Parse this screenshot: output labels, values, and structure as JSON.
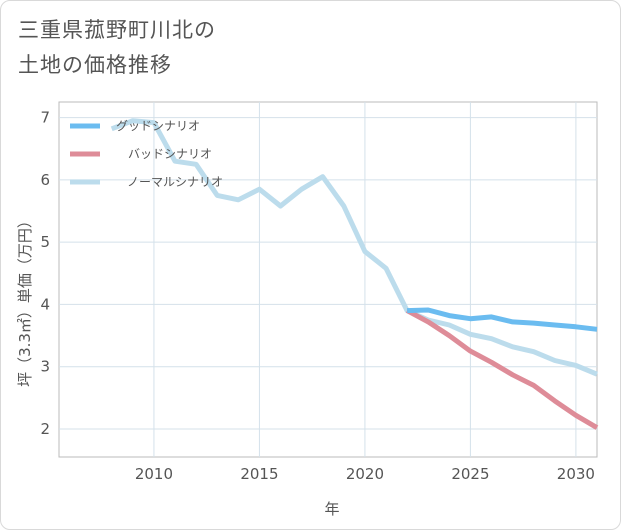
{
  "title": {
    "line1": "三重県菰野町川北の",
    "line2": "土地の価格推移"
  },
  "chart_data": {
    "type": "line",
    "title": "三重県菰野町川北の土地の価格推移",
    "xlabel": "年",
    "ylabel": "坪（3.3㎡）単価（万円）",
    "xlim": [
      2005.5,
      2031
    ],
    "ylim": [
      1.55,
      7.25
    ],
    "xticks": [
      2010,
      2015,
      2020,
      2025,
      2030
    ],
    "yticks": [
      2,
      3,
      4,
      5,
      6,
      7
    ],
    "grid": true,
    "legend_position": "top-left",
    "series": [
      {
        "name": "グッドシナリオ",
        "color": "#6bbcf0",
        "x": [
          2022,
          2023,
          2024,
          2025,
          2026,
          2027,
          2028,
          2029,
          2030,
          2031
        ],
        "values": [
          3.9,
          3.91,
          3.82,
          3.77,
          3.8,
          3.72,
          3.7,
          3.67,
          3.64,
          3.6
        ]
      },
      {
        "name": "バッドシナリオ",
        "color": "#de8c98",
        "x": [
          2022,
          2023,
          2024,
          2025,
          2026,
          2027,
          2028,
          2029,
          2030,
          2031
        ],
        "values": [
          3.9,
          3.72,
          3.5,
          3.25,
          3.07,
          2.87,
          2.7,
          2.45,
          2.22,
          2.02
        ]
      },
      {
        "name": "ノーマルシナリオ",
        "color": "#bcdcec",
        "x": [
          2008,
          2009,
          2010,
          2011,
          2012,
          2013,
          2014,
          2015,
          2016,
          2017,
          2018,
          2019,
          2020,
          2021,
          2022,
          2023,
          2024,
          2025,
          2026,
          2027,
          2028,
          2029,
          2030,
          2031
        ],
        "values": [
          6.82,
          6.95,
          6.92,
          6.3,
          6.25,
          5.75,
          5.68,
          5.85,
          5.58,
          5.85,
          6.05,
          5.58,
          4.85,
          4.58,
          3.9,
          3.75,
          3.67,
          3.52,
          3.45,
          3.32,
          3.24,
          3.1,
          3.02,
          2.88
        ]
      }
    ]
  }
}
